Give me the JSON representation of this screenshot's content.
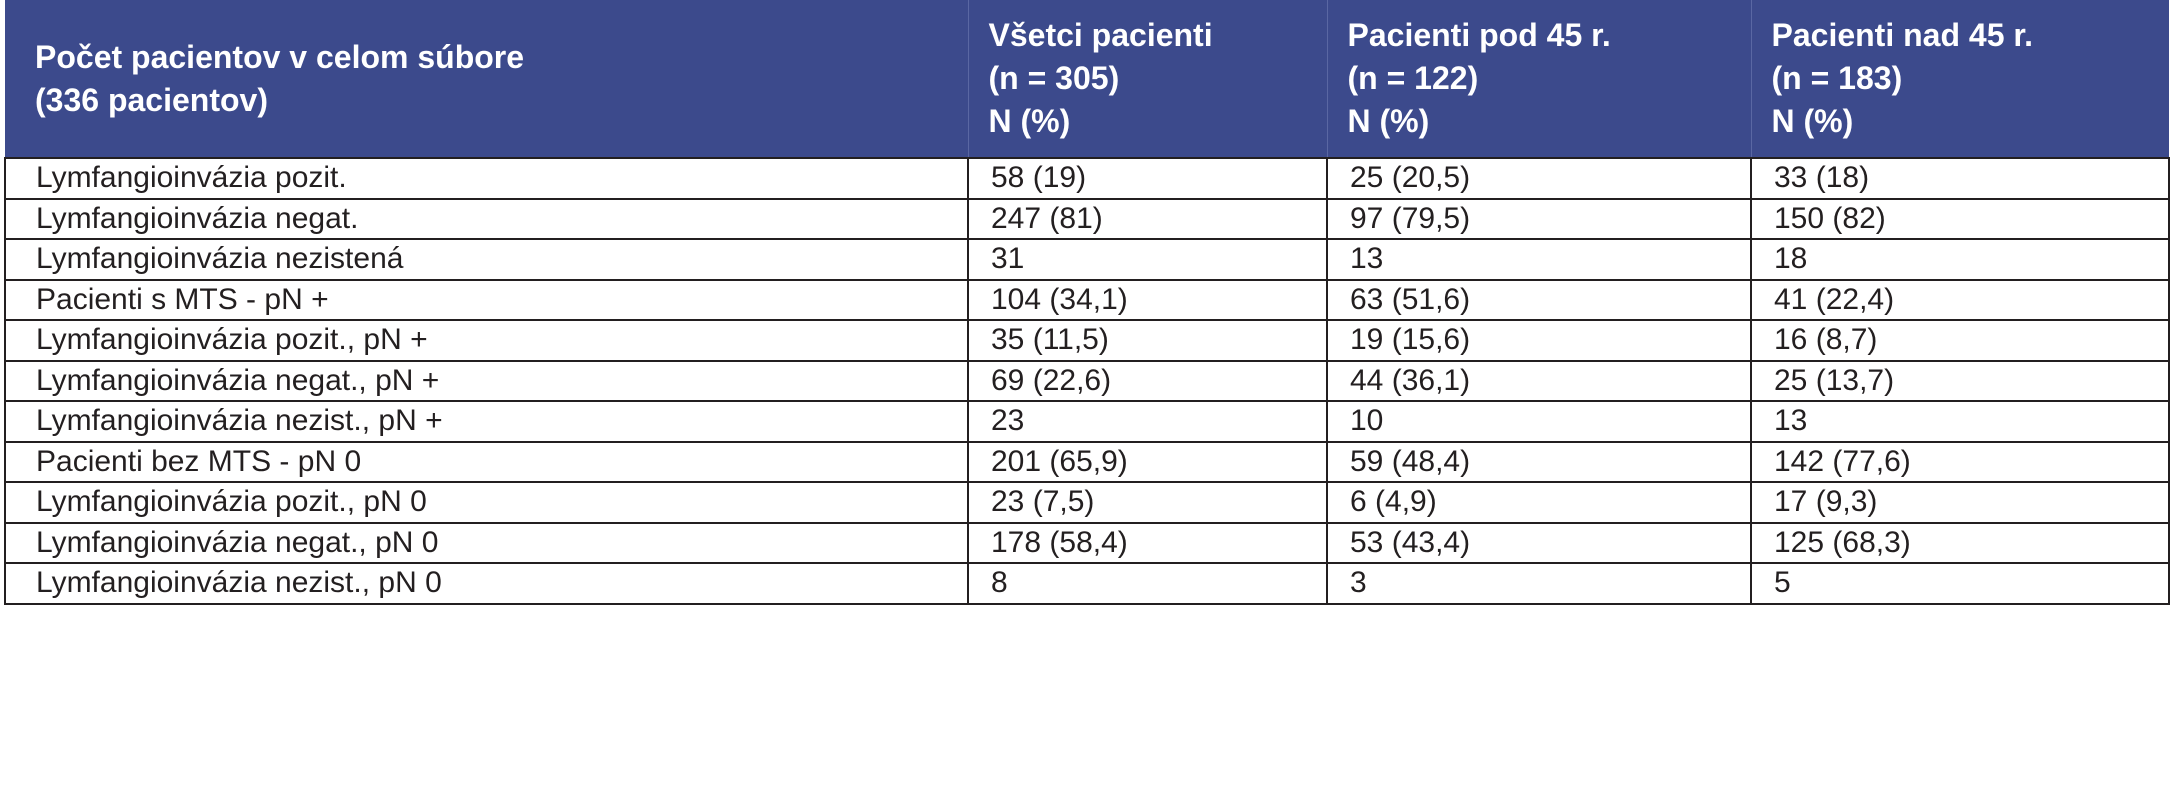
{
  "table": {
    "header": {
      "col1": [
        "Počet pacientov v celom  súbore",
        "(336 pacientov)"
      ],
      "col2": [
        "Všetci pacienti",
        "(n = 305)",
        "N (%)"
      ],
      "col3": [
        "Pacienti pod 45 r.",
        "(n = 122)",
        "N (%)"
      ],
      "col4": [
        "Pacienti nad 45 r.",
        "(n = 183)",
        "N (%)"
      ]
    },
    "rows": [
      [
        "Lymfangioinvázia pozit.",
        "58 (19)",
        "25 (20,5)",
        "33 (18)"
      ],
      [
        "Lymfangioinvázia negat.",
        "247 (81)",
        "97 (79,5)",
        "150 (82)"
      ],
      [
        "Lymfangioinvázia nezistená",
        "31",
        "13",
        "18"
      ],
      [
        "Pacienti s MTS - pN +",
        "104 (34,1)",
        "63 (51,6)",
        "41 (22,4)"
      ],
      [
        "Lymfangioinvázia pozit., pN +",
        "35 (11,5)",
        "19 (15,6)",
        "16 (8,7)"
      ],
      [
        "Lymfangioinvázia negat., pN +",
        "69 (22,6)",
        "44 (36,1)",
        "25 (13,7)"
      ],
      [
        "Lymfangioinvázia nezist., pN +",
        "23",
        "10",
        "13"
      ],
      [
        "Pacienti bez MTS - pN 0",
        "201 (65,9)",
        "59 (48,4)",
        "142 (77,6)"
      ],
      [
        "Lymfangioinvázia pozit., pN 0",
        "23 (7,5)",
        "6 (4,9)",
        "17 (9,3)"
      ],
      [
        "Lymfangioinvázia negat., pN 0",
        "178 (58,4)",
        "53 (43,4)",
        "125 (68,3)"
      ],
      [
        "Lymfangioinvázia nezist., pN 0",
        "8",
        "3",
        "5"
      ]
    ]
  }
}
